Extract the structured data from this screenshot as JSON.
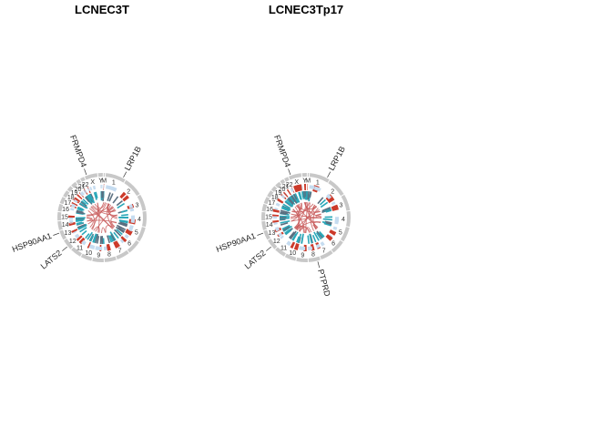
{
  "figure": {
    "panels": [
      {
        "title": "LCNEC3T",
        "center": [
          112,
          239
        ],
        "genes": [
          {
            "name": "FRMPD4",
            "angle": -20,
            "dir": "in-left"
          },
          {
            "name": "LRP1B",
            "angle": 28
          },
          {
            "name": "HSP90AA1",
            "angle": 250
          },
          {
            "name": "LATS2",
            "angle": 230
          }
        ]
      },
      {
        "title": "LCNEC3Tp17",
        "center": [
          336,
          239
        ],
        "genes": [
          {
            "name": "FRMPD4",
            "angle": -20
          },
          {
            "name": "LRP1B",
            "angle": 28
          },
          {
            "name": "HSP90AA1",
            "angle": 250
          },
          {
            "name": "LATS2",
            "angle": 230
          },
          {
            "name": "PTPRD",
            "angle": 165
          }
        ]
      }
    ],
    "chromosomes": [
      "1",
      "2",
      "3",
      "4",
      "5",
      "6",
      "7",
      "8",
      "9",
      "10",
      "11",
      "12",
      "13",
      "14",
      "15",
      "16",
      "17",
      "18",
      "19",
      "20",
      "21",
      "22",
      "X",
      "Y",
      "M"
    ],
    "colors": {
      "ideogram": "#c8c8c8",
      "cnv_gain": "#cc3a2a",
      "cnv_loss": "#c6dcf0",
      "snv": "#2aa7b8",
      "snv_dark": "#5a6f80",
      "link": "#c85a5a"
    }
  }
}
